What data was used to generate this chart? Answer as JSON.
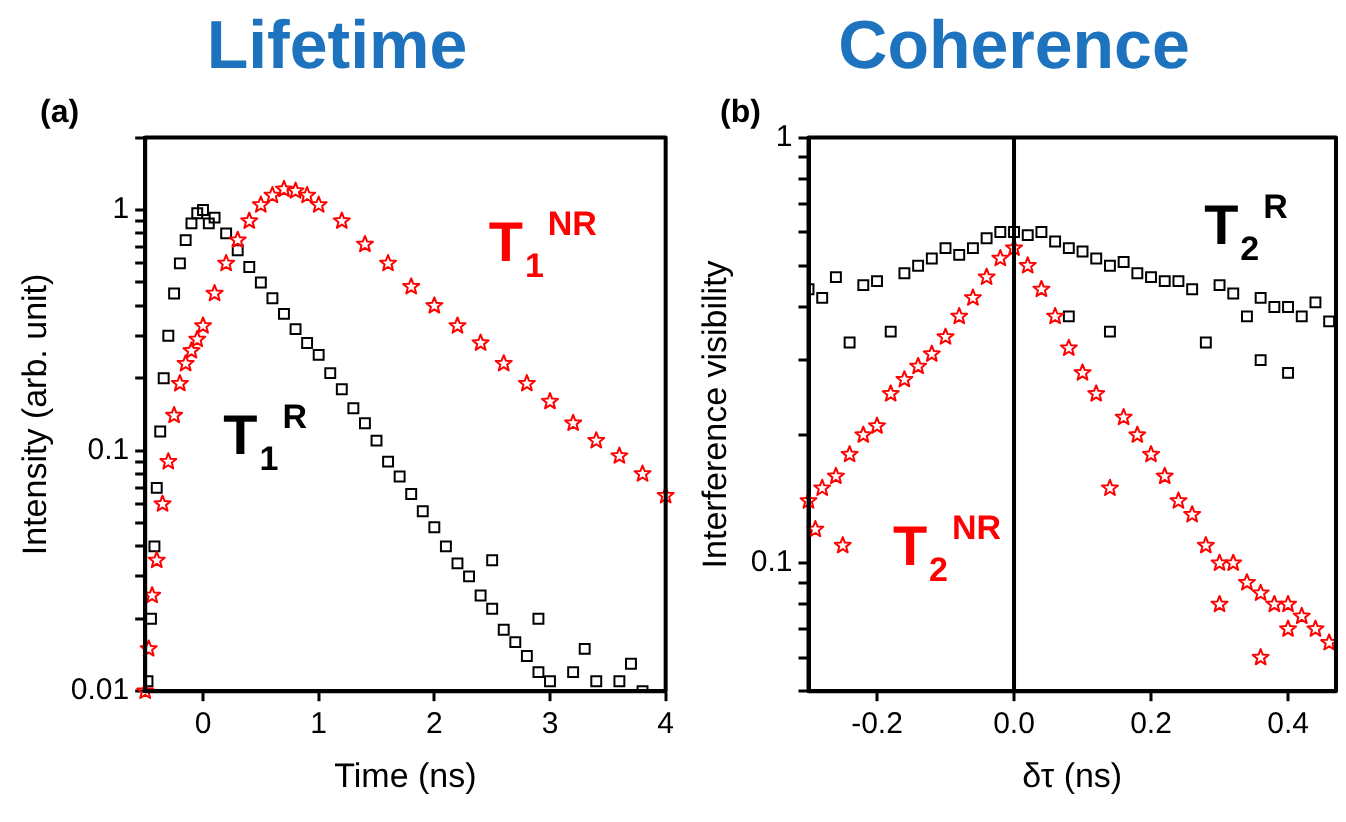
{
  "chart_data": [
    {
      "type": "scatter",
      "title": "Lifetime",
      "xlabel": "Time (ns)",
      "ylabel": "Intensity (arb. unit)",
      "log": "y",
      "grid": false,
      "xlim": [
        -0.5,
        4
      ],
      "xticks": [
        0,
        1,
        2,
        3,
        4
      ],
      "ylim": [
        0.01,
        2
      ],
      "yticks": [
        0.01,
        {
          "value": 0.02,
          "label": null
        },
        {
          "value": 0.03,
          "label": null
        },
        {
          "value": 0.04,
          "label": null
        },
        {
          "value": 0.05,
          "label": null
        },
        {
          "value": 0.06,
          "label": null
        },
        {
          "value": 0.07,
          "label": null
        },
        {
          "value": 0.08,
          "label": null
        },
        {
          "value": 0.09,
          "label": null
        },
        0.1,
        {
          "value": 0.2,
          "label": null
        },
        {
          "value": 0.3,
          "label": null
        },
        {
          "value": 0.4,
          "label": null
        },
        {
          "value": 0.5,
          "label": null
        },
        {
          "value": 0.6,
          "label": null
        },
        {
          "value": 0.7,
          "label": null
        },
        {
          "value": 0.8,
          "label": null
        },
        {
          "value": 0.9,
          "label": null
        },
        1,
        {
          "value": 2,
          "label": null
        }
      ],
      "annotations": [
        "(a)"
      ],
      "series": [
        {
          "name": "T$_{1}$$^{R}$",
          "color": "#000000",
          "marker": "square",
          "x": [
            -0.48,
            -0.45,
            -0.42,
            -0.4,
            -0.37,
            -0.34,
            -0.3,
            -0.25,
            -0.2,
            -0.15,
            -0.1,
            -0.05,
            0,
            0.05,
            0.1,
            0.2,
            0.3,
            0.4,
            0.5,
            0.6,
            0.7,
            0.8,
            0.9,
            1.0,
            1.1,
            1.2,
            1.3,
            1.4,
            1.5,
            1.6,
            1.7,
            1.8,
            1.9,
            2.0,
            2.1,
            2.2,
            2.3,
            2.4,
            2.5,
            2.6,
            2.7,
            2.8,
            2.9,
            3.0,
            3.2,
            3.4,
            3.6,
            3.8,
            2.5,
            2.9,
            3.3,
            3.7
          ],
          "values": [
            0.011,
            0.02,
            0.04,
            0.07,
            0.12,
            0.2,
            0.3,
            0.45,
            0.6,
            0.75,
            0.88,
            0.97,
            1.0,
            0.88,
            0.93,
            0.8,
            0.68,
            0.58,
            0.5,
            0.43,
            0.37,
            0.32,
            0.28,
            0.25,
            0.21,
            0.18,
            0.15,
            0.13,
            0.11,
            0.09,
            0.078,
            0.066,
            0.056,
            0.048,
            0.04,
            0.034,
            0.03,
            0.025,
            0.022,
            0.018,
            0.016,
            0.014,
            0.012,
            0.011,
            0.012,
            0.011,
            0.011,
            0.01,
            0.035,
            0.02,
            0.015,
            0.013
          ]
        },
        {
          "name": "T$_{1}$$^{NR}$",
          "color": "#ff0000",
          "marker": "star",
          "x": [
            -0.5,
            -0.47,
            -0.44,
            -0.4,
            -0.35,
            -0.3,
            -0.25,
            -0.2,
            -0.15,
            -0.1,
            -0.05,
            0,
            0.1,
            0.2,
            0.3,
            0.4,
            0.5,
            0.6,
            0.7,
            0.8,
            0.9,
            1.0,
            1.2,
            1.4,
            1.6,
            1.8,
            2.0,
            2.2,
            2.4,
            2.6,
            2.8,
            3.0,
            3.2,
            3.4,
            3.6,
            3.8,
            4.0
          ],
          "values": [
            0.01,
            0.015,
            0.025,
            0.035,
            0.06,
            0.09,
            0.14,
            0.19,
            0.23,
            0.26,
            0.29,
            0.33,
            0.45,
            0.6,
            0.75,
            0.9,
            1.05,
            1.15,
            1.22,
            1.2,
            1.15,
            1.05,
            0.9,
            0.72,
            0.6,
            0.48,
            0.4,
            0.33,
            0.28,
            0.23,
            0.19,
            0.16,
            0.13,
            0.11,
            0.095,
            0.08,
            0.065
          ]
        }
      ]
    },
    {
      "type": "scatter",
      "title": "Coherence",
      "xlabel": "δτ (ns)",
      "ylabel": "Interference visibility",
      "log": "y",
      "grid": false,
      "xlim": [
        -0.3,
        0.47
      ],
      "xticks": [
        -0.2,
        {
          "value": 0,
          "label": "0.0"
        },
        0.2,
        0.4
      ],
      "ylim": [
        0.05,
        1
      ],
      "yticks": [
        {
          "value": 0.05,
          "label": null
        },
        {
          "value": 0.06,
          "label": null
        },
        {
          "value": 0.07,
          "label": null
        },
        {
          "value": 0.08,
          "label": null
        },
        {
          "value": 0.09,
          "label": null
        },
        0.1,
        {
          "value": 0.2,
          "label": null
        },
        {
          "value": 0.3,
          "label": null
        },
        {
          "value": 0.4,
          "label": null
        },
        {
          "value": 0.5,
          "label": null
        },
        {
          "value": 0.6,
          "label": null
        },
        {
          "value": 0.7,
          "label": null
        },
        {
          "value": 0.8,
          "label": null
        },
        {
          "value": 0.9,
          "label": null
        },
        1
      ],
      "annotations": [
        "(b)"
      ],
      "ref_lines": [
        {
          "axis": "x",
          "value": 0,
          "color": "#000000"
        }
      ],
      "series": [
        {
          "name": "T$_{2}$$^{R}$",
          "color": "#000000",
          "marker": "square",
          "x": [
            -0.3,
            -0.28,
            -0.26,
            -0.24,
            -0.22,
            -0.2,
            -0.18,
            -0.16,
            -0.14,
            -0.12,
            -0.1,
            -0.08,
            -0.06,
            -0.04,
            -0.02,
            0,
            0.02,
            0.04,
            0.06,
            0.08,
            0.1,
            0.12,
            0.14,
            0.16,
            0.18,
            0.2,
            0.22,
            0.24,
            0.26,
            0.28,
            0.3,
            0.32,
            0.34,
            0.36,
            0.38,
            0.4,
            0.42,
            0.44,
            0.46,
            0.08,
            0.14,
            0.36,
            0.4
          ],
          "values": [
            0.44,
            0.42,
            0.47,
            0.33,
            0.45,
            0.46,
            0.35,
            0.48,
            0.5,
            0.52,
            0.55,
            0.53,
            0.55,
            0.58,
            0.6,
            0.6,
            0.59,
            0.6,
            0.57,
            0.55,
            0.54,
            0.52,
            0.5,
            0.51,
            0.48,
            0.47,
            0.46,
            0.46,
            0.44,
            0.33,
            0.45,
            0.43,
            0.38,
            0.42,
            0.4,
            0.4,
            0.38,
            0.41,
            0.37,
            0.38,
            0.35,
            0.3,
            0.28
          ]
        },
        {
          "name": "T$_{2}$$^{NR}$",
          "color": "#ff0000",
          "marker": "star",
          "x": [
            -0.3,
            -0.29,
            -0.28,
            -0.26,
            -0.25,
            -0.24,
            -0.22,
            -0.2,
            -0.18,
            -0.16,
            -0.14,
            -0.12,
            -0.1,
            -0.08,
            -0.06,
            -0.04,
            -0.02,
            0,
            0.02,
            0.04,
            0.06,
            0.08,
            0.1,
            0.12,
            0.14,
            0.16,
            0.18,
            0.2,
            0.22,
            0.24,
            0.26,
            0.28,
            0.3,
            0.32,
            0.34,
            0.36,
            0.38,
            0.4,
            0.42,
            0.44,
            0.46,
            0.36,
            0.4,
            0.3
          ],
          "values": [
            0.14,
            0.12,
            0.15,
            0.16,
            0.11,
            0.18,
            0.2,
            0.21,
            0.25,
            0.27,
            0.29,
            0.31,
            0.34,
            0.38,
            0.42,
            0.47,
            0.52,
            0.55,
            0.5,
            0.44,
            0.38,
            0.32,
            0.28,
            0.25,
            0.15,
            0.22,
            0.2,
            0.18,
            0.16,
            0.14,
            0.13,
            0.11,
            0.1,
            0.1,
            0.09,
            0.085,
            0.08,
            0.08,
            0.075,
            0.07,
            0.065,
            0.06,
            0.07,
            0.08
          ]
        }
      ]
    }
  ]
}
